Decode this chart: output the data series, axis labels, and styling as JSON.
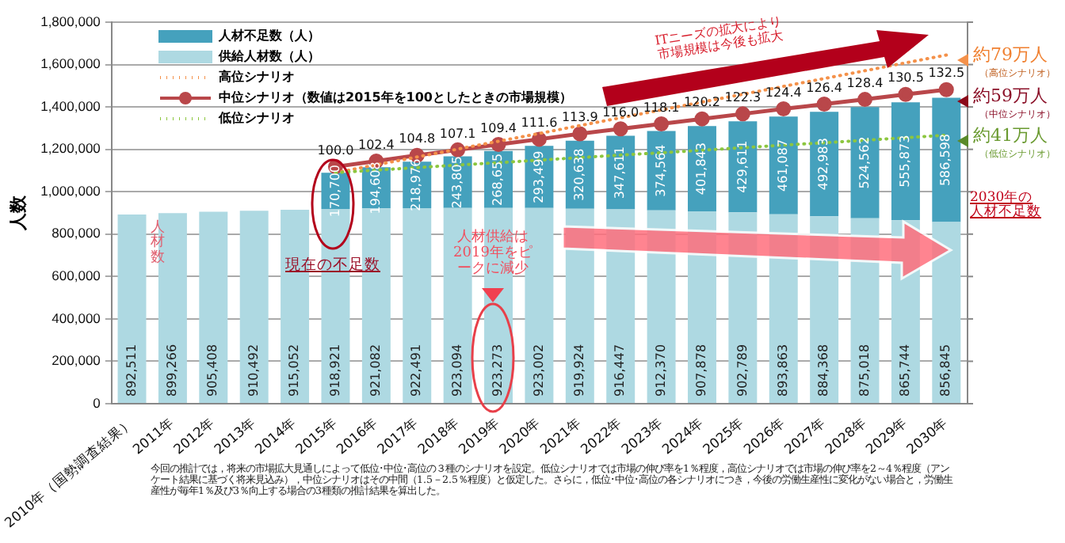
{
  "chart_data": {
    "type": "bar",
    "stacked": true,
    "ylabel": "人数",
    "grid": "y",
    "legend": "top left",
    "categories": [
      "2010年（国勢調査結果）",
      "2011年",
      "2012年",
      "2013年",
      "2014年",
      "2015年",
      "2016年",
      "2017年",
      "2018年",
      "2019年",
      "2020年",
      "2021年",
      "2022年",
      "2023年",
      "2024年",
      "2025年",
      "2026年",
      "2027年",
      "2028年",
      "2029年",
      "2030年"
    ],
    "ylim": [
      0,
      1800000
    ],
    "y2lim": [
      0,
      161
    ],
    "yticks": [
      {
        "value": 0,
        "label": "0"
      },
      {
        "value": 200000,
        "label": "200,000"
      },
      {
        "value": 400000,
        "label": "400,000"
      },
      {
        "value": 600000,
        "label": "600,000"
      },
      {
        "value": 800000,
        "label": "800,000"
      },
      {
        "value": 1000000,
        "label": "1,000,000"
      },
      {
        "value": 1200000,
        "label": "1,200,000"
      },
      {
        "value": 1400000,
        "label": "1,400,000"
      },
      {
        "value": 1600000,
        "label": "1,600,000"
      },
      {
        "value": 1800000,
        "label": "1,800,000"
      }
    ],
    "series": [
      {
        "name": "供給人材数（人）",
        "color": "#aed9e2",
        "values": [
          892511,
          899266,
          905408,
          910492,
          915052,
          918921,
          921082,
          922491,
          923094,
          923273,
          923002,
          919924,
          916447,
          912370,
          907878,
          902789,
          893863,
          884368,
          875018,
          865744,
          856845
        ],
        "value_labels": [
          "892,511",
          "899,266",
          "905,408",
          "910,492",
          "915,052",
          "918,921",
          "921,082",
          "922,491",
          "923,094",
          "923,273",
          "923,002",
          "919,924",
          "916,447",
          "912,370",
          "907,878",
          "902,789",
          "893,863",
          "884,368",
          "875,018",
          "865,744",
          "856,845"
        ]
      },
      {
        "name": "人材不足数（人）",
        "color": "#45a1bd",
        "values": [
          null,
          null,
          null,
          null,
          null,
          170700,
          194608,
          218976,
          243805,
          268655,
          293499,
          320638,
          347611,
          374564,
          401843,
          429611,
          461087,
          492983,
          524562,
          555873,
          586598
        ],
        "value_labels": [
          null,
          null,
          null,
          null,
          null,
          "170,700",
          "194,608",
          "218,976",
          "243,805",
          "268,655",
          "293,499",
          "320,638",
          "347,611",
          "374,564",
          "401,843",
          "429,611",
          "461,087",
          "492,983",
          "524,562",
          "555,873",
          "586,598"
        ]
      },
      {
        "name": "高位シナリオ",
        "type": "line",
        "color": "#f4914a",
        "marker": "none",
        "line_style": "dotted",
        "values": [
          null,
          null,
          null,
          null,
          null,
          1090000,
          1127000,
          1164000,
          1201000,
          1238000,
          1275000,
          1312000,
          1349000,
          1386000,
          1423000,
          1460000,
          1497000,
          1534000,
          1571000,
          1608000,
          1645000
        ]
      },
      {
        "name": "中位シナリオ（数値は2015年を100としたときの市場規模）",
        "type": "line",
        "color": "#b9474a",
        "marker": "circle",
        "line_style": "solid",
        "axis": "y2",
        "values": [
          null,
          null,
          null,
          null,
          null,
          100.0,
          102.4,
          104.8,
          107.1,
          109.4,
          111.6,
          113.9,
          116.0,
          118.1,
          120.2,
          122.3,
          124.4,
          126.4,
          128.4,
          130.5,
          132.5
        ],
        "value_labels": [
          null,
          null,
          null,
          null,
          null,
          "100.0",
          "102.4",
          "104.8",
          "107.1",
          "109.4",
          "111.6",
          "113.9",
          "116.0",
          "118.1",
          "120.2",
          "122.3",
          "124.4",
          "126.4",
          "128.4",
          "130.5",
          "132.5"
        ]
      },
      {
        "name": "低位シナリオ",
        "type": "line",
        "color": "#8cc63f",
        "marker": "none",
        "line_style": "dotted",
        "values": [
          null,
          null,
          null,
          null,
          null,
          1090000,
          1102000,
          1114000,
          1126000,
          1137000,
          1149000,
          1161000,
          1173000,
          1184000,
          1196000,
          1208000,
          1220000,
          1231000,
          1243000,
          1255000,
          1267000
        ]
      }
    ],
    "annotations": [
      "ITニーズの拡大により市場規模は今後も拡大",
      "約79万人",
      "（高位シナリオ）",
      "約59万人",
      "（中位シナリオ）",
      "約41万人",
      "（低位シナリオ）",
      "2030年の人材不足数",
      "現在の不足数",
      "人材供給は2019年をピークに減少",
      "人材数",
      "今回の推計では，将来の市場拡大見通しによって低位･中位･高位の３種のシナリオを設定。低位シナリオでは市場の伸び率を1％程度，高位シナリオでは市場の伸び率を2～4％程度（アンケート結果に基づく将来見込み），中位シナリオはその中間（1.5－2.5％程度）と仮定した。さらに，低位･中位･高位の各シナリオにつき，今後の労働生産性に変化がない場合と，労働生産性が毎年1％及び3％向上する場合の3種類の推計結果を算出した。"
    ]
  }
}
